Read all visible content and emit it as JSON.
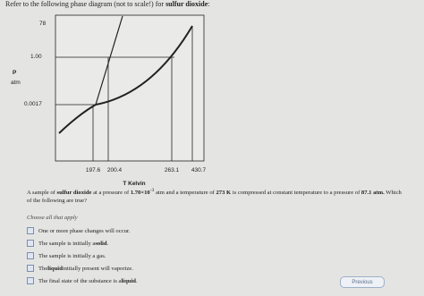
{
  "header": {
    "title": [
      "Refer to the following phase diagram (not to scale!) for ",
      "sulfur dioxide",
      ":"
    ]
  },
  "diagram": {
    "y_labels": [
      "78",
      "1.00",
      "0.0017"
    ],
    "y_axis_label": [
      "P",
      "atm"
    ],
    "x_labels": [
      "197.6",
      "200.4",
      "263.1",
      "430.7"
    ],
    "x_axis_label": "T Kelvin"
  },
  "question": {
    "segments": [
      "A sample of ",
      "sulfur dioxide",
      " at a pressure of ",
      "1.70×10",
      "-3",
      " atm and a temperature of ",
      "273 K",
      " is compressed at constant temperature to a pressure of ",
      "87.1 atm.",
      " Which of the following are true?"
    ],
    "instruction": "Choose all that apply",
    "options": [
      [
        "One or more phase changes will occur."
      ],
      [
        "The sample is initially a ",
        "solid",
        "."
      ],
      [
        "The sample is initially a gas."
      ],
      [
        "The ",
        "liquid",
        " initially present will vaporize."
      ],
      [
        "The final state of the substance is a ",
        "liquid",
        "."
      ]
    ]
  },
  "nav": {
    "previous": "Previous"
  }
}
